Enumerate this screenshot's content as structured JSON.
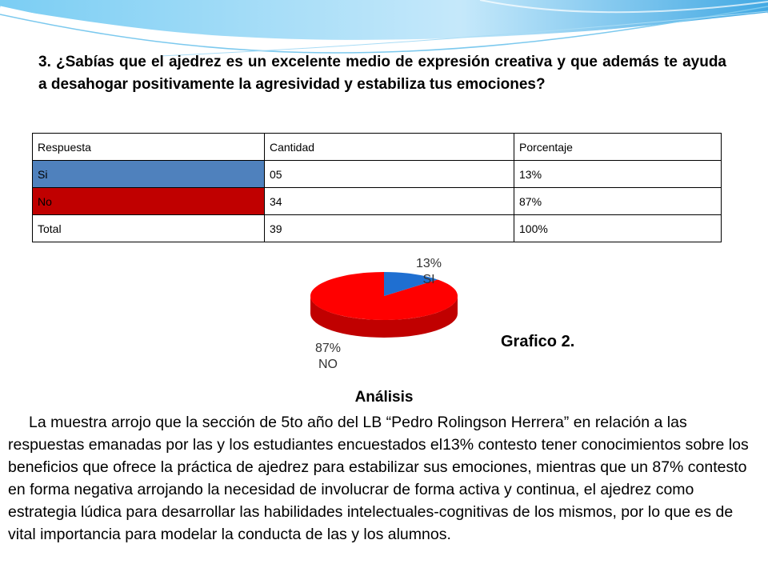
{
  "question": "3. ¿Sabías que el ajedrez es un excelente medio de expresión creativa y que además te ayuda a desahogar positivamente la agresividad y estabiliza tus emociones?",
  "table": {
    "headers": [
      "Respuesta",
      "Cantidad",
      "Porcentaje"
    ],
    "rows": [
      {
        "respuesta": "Si",
        "cantidad": "05",
        "porcentaje": "13%"
      },
      {
        "respuesta": "No",
        "cantidad": "34",
        "porcentaje": "87%"
      },
      {
        "respuesta": "Total",
        "cantidad": "39",
        "porcentaje": "100%"
      }
    ]
  },
  "chart_data": {
    "type": "pie",
    "categories": [
      "SI",
      "NO"
    ],
    "values": [
      13,
      87
    ],
    "data_labels": [
      {
        "percent": "13%",
        "name": "SI"
      },
      {
        "percent": "87%",
        "name": "NO"
      }
    ],
    "colors": [
      "#1f6fd1",
      "#ff0000"
    ],
    "title": ""
  },
  "graph_caption": "Grafico 2.",
  "analysis": {
    "title": "Análisis",
    "text": "La muestra arrojo que la sección de 5to año del LB “Pedro Rolingson Herrera” en relación a las respuestas emanadas por las y los estudiantes encuestados el13% contesto tener conocimientos sobre los beneficios que ofrece la práctica de ajedrez para estabilizar  sus emociones, mientras que un  87% contesto en forma negativa arrojando la necesidad de involucrar de forma activa y continua, el ajedrez como estrategia lúdica para desarrollar las habilidades intelectuales-cognitivas de los mismos, por lo que es de vital importancia para modelar la conducta de las y los alumnos."
  },
  "colors": {
    "si_cell": "#4f81bd",
    "no_cell": "#c00000",
    "wave": "#4fb3e8"
  }
}
